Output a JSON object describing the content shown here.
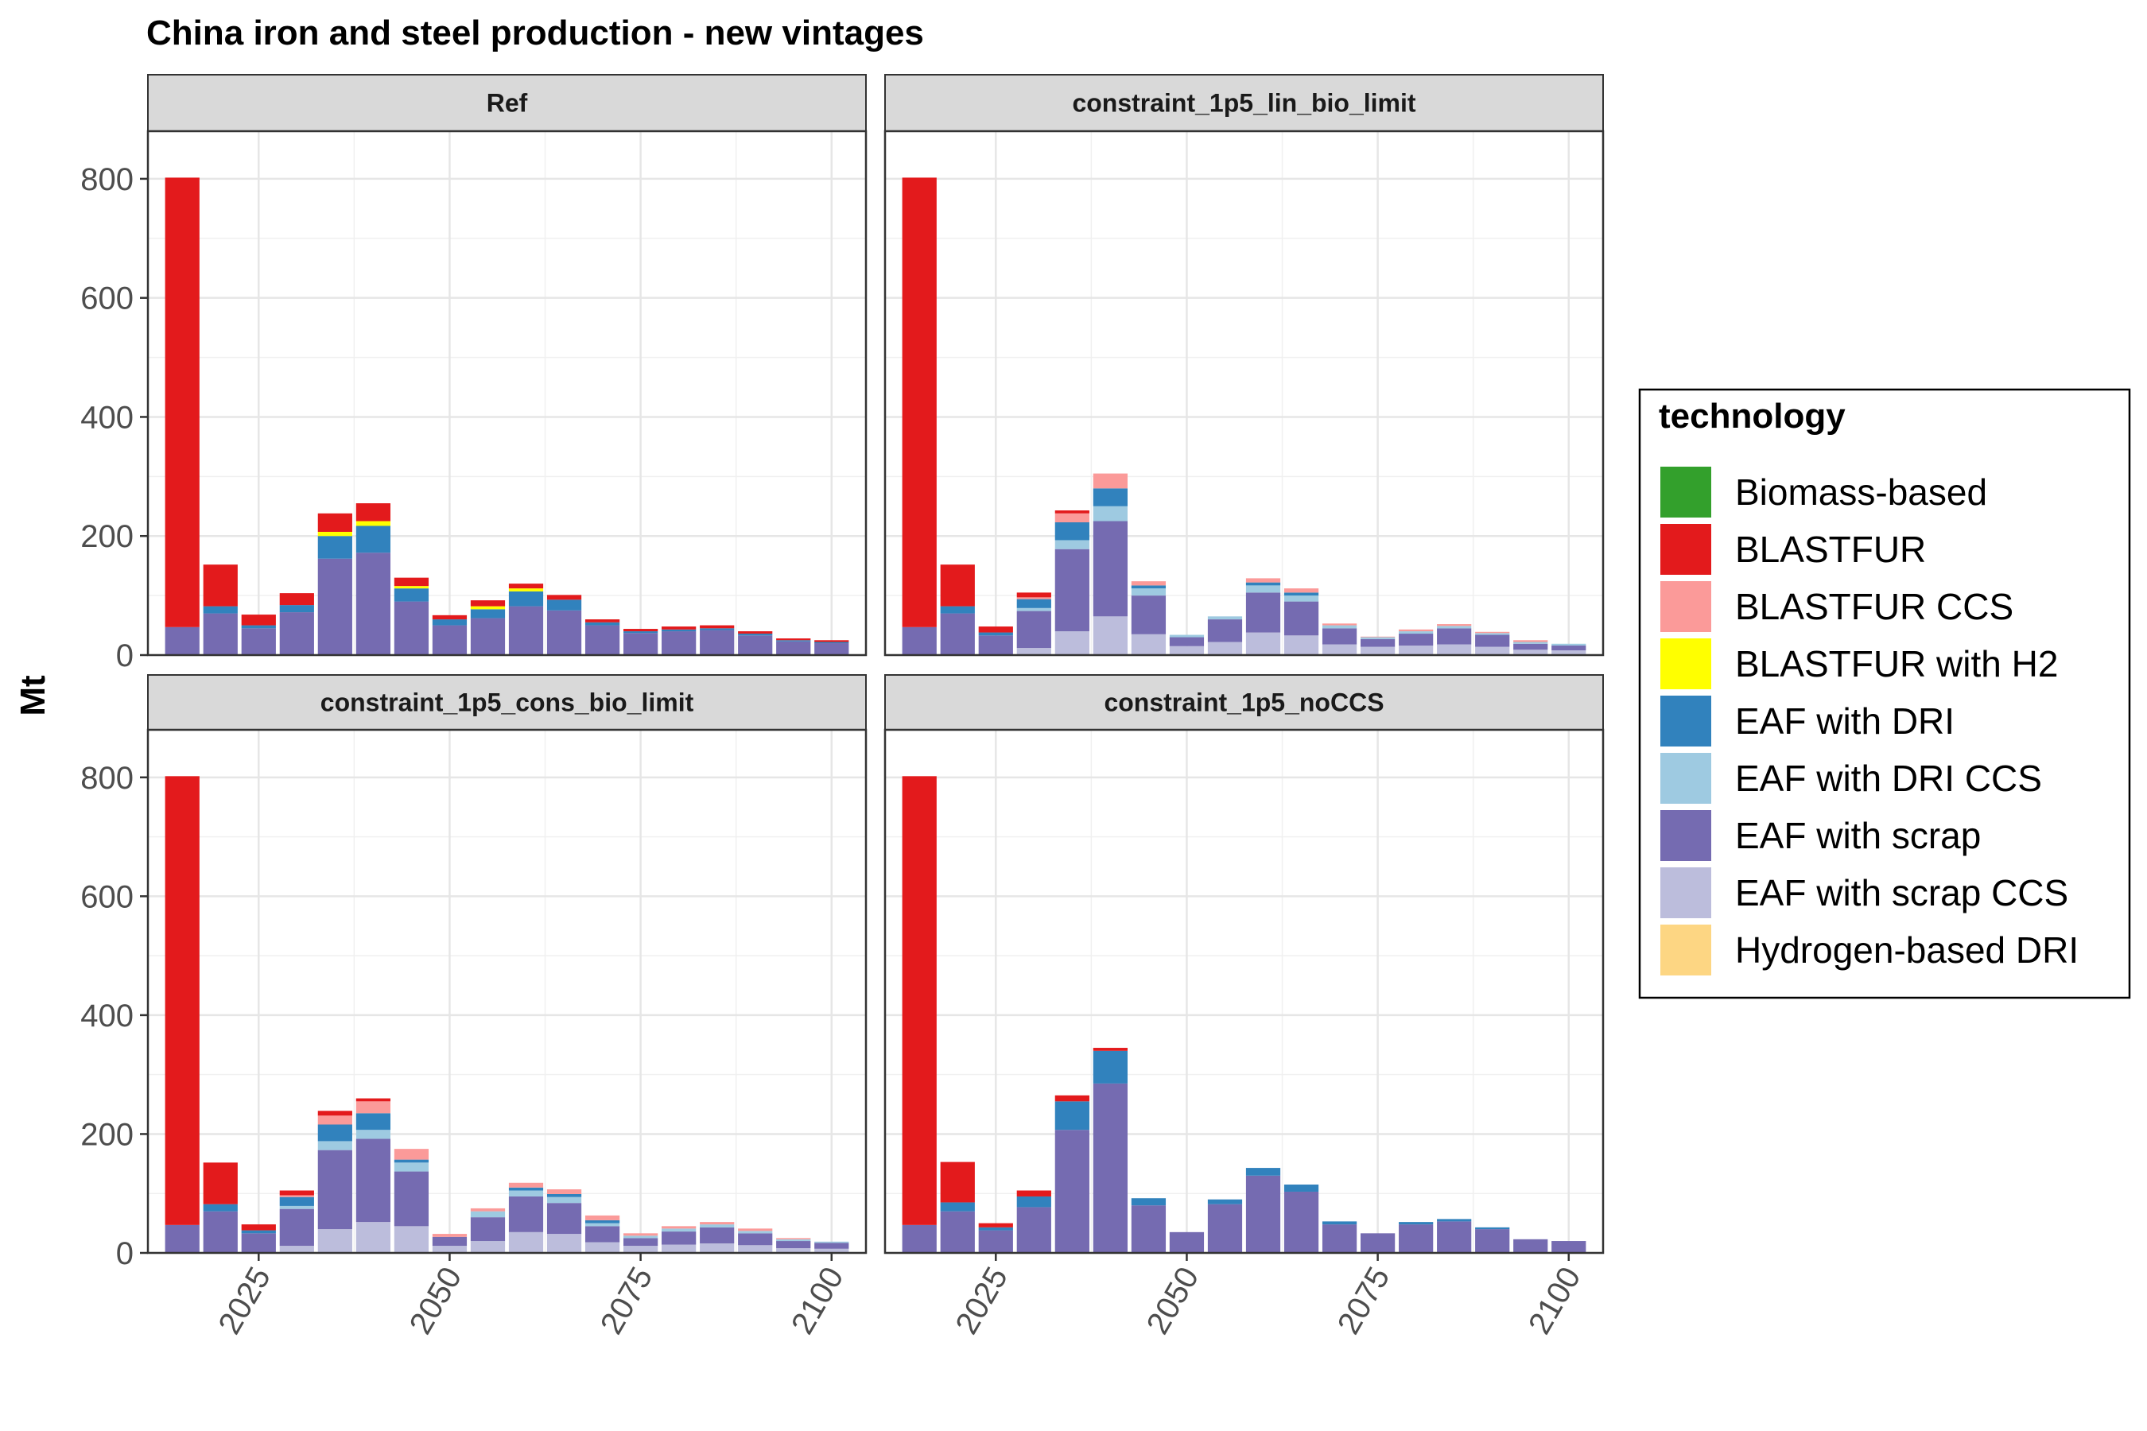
{
  "chart_data": {
    "type": "bar",
    "stacked": true,
    "title": "China iron and steel production - new vintages",
    "ylabel": "Mt",
    "xlabel": "",
    "ylim": [
      0,
      880
    ],
    "yticks": [
      0,
      200,
      400,
      600,
      800
    ],
    "xticks": [
      2025,
      2050,
      2075,
      2100
    ],
    "x": [
      2015,
      2020,
      2025,
      2030,
      2035,
      2040,
      2045,
      2050,
      2055,
      2060,
      2065,
      2070,
      2075,
      2080,
      2085,
      2090,
      2095,
      2100
    ],
    "grid": true,
    "legend_position": "right",
    "legend": {
      "title": "technology",
      "items": [
        {
          "name": "Biomass-based",
          "color": "#33a02c"
        },
        {
          "name": "BLASTFUR",
          "color": "#e31a1c"
        },
        {
          "name": "BLASTFUR CCS",
          "color": "#fb9a99"
        },
        {
          "name": "BLASTFUR with H2",
          "color": "#ffff00"
        },
        {
          "name": "EAF with DRI",
          "color": "#3182bd"
        },
        {
          "name": "EAF with DRI CCS",
          "color": "#9ecae1"
        },
        {
          "name": "EAF with scrap",
          "color": "#756bb1"
        },
        {
          "name": "EAF with scrap CCS",
          "color": "#bcbddc"
        },
        {
          "name": "Hydrogen-based DRI",
          "color": "#fdd683"
        }
      ]
    },
    "stack_order": [
      "EAF with scrap CCS",
      "EAF with scrap",
      "EAF with DRI CCS",
      "EAF with DRI",
      "Biomass-based",
      "Hydrogen-based DRI",
      "BLASTFUR with H2",
      "BLASTFUR CCS",
      "BLASTFUR"
    ],
    "panels": [
      {
        "name": "Ref",
        "series": {
          "EAF with scrap": [
            47,
            70,
            45,
            72,
            162,
            172,
            90,
            50,
            62,
            82,
            75,
            50,
            37,
            40,
            42,
            33,
            23,
            20
          ],
          "EAF with DRI": [
            0,
            12,
            5,
            12,
            38,
            45,
            22,
            10,
            15,
            25,
            18,
            5,
            3,
            3,
            3,
            3,
            2,
            2
          ],
          "BLASTFUR with H2": [
            0,
            0,
            0,
            0,
            7,
            8,
            4,
            0,
            5,
            5,
            0,
            0,
            0,
            0,
            0,
            0,
            0,
            0
          ],
          "BLASTFUR": [
            755,
            70,
            18,
            20,
            31,
            30,
            14,
            7,
            10,
            8,
            8,
            5,
            4,
            5,
            5,
            4,
            3,
            3
          ]
        }
      },
      {
        "name": "constraint_1p5_lin_bio_limit",
        "series": {
          "EAF with scrap CCS": [
            0,
            0,
            0,
            12,
            40,
            65,
            35,
            15,
            22,
            38,
            33,
            18,
            14,
            16,
            18,
            14,
            9,
            8
          ],
          "EAF with scrap": [
            47,
            70,
            33,
            62,
            138,
            160,
            65,
            15,
            38,
            67,
            57,
            27,
            13,
            20,
            27,
            20,
            10,
            8
          ],
          "EAF with DRI CCS": [
            0,
            0,
            0,
            5,
            15,
            25,
            12,
            4,
            5,
            12,
            10,
            5,
            3,
            4,
            4,
            3,
            3,
            3
          ],
          "EAF with DRI": [
            0,
            12,
            5,
            15,
            30,
            30,
            5,
            0,
            0,
            5,
            5,
            0,
            0,
            0,
            0,
            0,
            0,
            0
          ],
          "BLASTFUR CCS": [
            0,
            0,
            0,
            3,
            15,
            25,
            7,
            0,
            0,
            7,
            7,
            3,
            1,
            3,
            3,
            2,
            3,
            0
          ],
          "BLASTFUR": [
            755,
            70,
            10,
            8,
            5,
            0,
            0,
            0,
            0,
            0,
            0,
            0,
            0,
            0,
            0,
            0,
            0,
            0
          ]
        }
      },
      {
        "name": "constraint_1p5_cons_bio_limit",
        "series": {
          "EAF with scrap CCS": [
            0,
            0,
            0,
            12,
            40,
            52,
            45,
            12,
            20,
            35,
            32,
            18,
            12,
            14,
            16,
            13,
            8,
            7
          ],
          "EAF with scrap": [
            47,
            70,
            33,
            62,
            133,
            140,
            92,
            15,
            40,
            60,
            52,
            27,
            13,
            22,
            27,
            20,
            12,
            10
          ],
          "EAF with DRI CCS": [
            0,
            0,
            0,
            5,
            15,
            15,
            15,
            0,
            10,
            10,
            10,
            5,
            4,
            5,
            5,
            4,
            3,
            2
          ],
          "EAF with DRI": [
            0,
            12,
            5,
            15,
            28,
            28,
            5,
            0,
            0,
            5,
            5,
            5,
            0,
            0,
            0,
            0,
            0,
            0
          ],
          "BLASTFUR CCS": [
            0,
            0,
            0,
            3,
            15,
            20,
            18,
            5,
            5,
            8,
            8,
            8,
            4,
            4,
            4,
            4,
            2,
            0
          ],
          "BLASTFUR": [
            755,
            70,
            10,
            8,
            8,
            5,
            0,
            0,
            0,
            0,
            0,
            0,
            0,
            0,
            0,
            0,
            0,
            0
          ]
        }
      },
      {
        "name": "constraint_1p5_noCCS",
        "series": {
          "EAF with scrap": [
            47,
            70,
            38,
            77,
            207,
            285,
            80,
            35,
            82,
            130,
            103,
            48,
            33,
            48,
            53,
            40,
            23,
            20
          ],
          "EAF with DRI": [
            0,
            15,
            5,
            18,
            48,
            55,
            12,
            0,
            8,
            13,
            12,
            5,
            0,
            4,
            4,
            3,
            0,
            0
          ],
          "BLASTFUR": [
            755,
            68,
            7,
            10,
            10,
            5,
            0,
            0,
            0,
            0,
            0,
            0,
            0,
            0,
            0,
            0,
            0,
            0
          ]
        }
      }
    ]
  }
}
